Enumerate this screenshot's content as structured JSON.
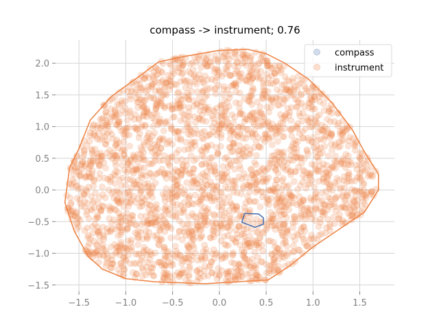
{
  "chart_data": {
    "type": "scatter",
    "title": "compass -> instrument; 0.76",
    "xlabel": "",
    "ylabel": "",
    "xlim": [
      -1.75,
      1.87
    ],
    "ylim": [
      -1.6,
      2.37
    ],
    "x_ticks": [
      -1.5,
      -1.0,
      -0.5,
      0.0,
      0.5,
      1.0,
      1.5
    ],
    "x_tick_labels": [
      "−1.5",
      "−1.0",
      "−0.5",
      "0.0",
      "0.5",
      "1.0",
      "1.5"
    ],
    "y_ticks": [
      -1.5,
      -1.0,
      -0.5,
      0.0,
      0.5,
      1.0,
      1.5,
      2.0
    ],
    "y_tick_labels": [
      "−1.5",
      "−1.0",
      "−0.5",
      "0.0",
      "0.5",
      "1.0",
      "1.5",
      "2.0"
    ],
    "grid": true,
    "legend_position": "top-right",
    "series": [
      {
        "name": "compass",
        "color": "#4c72b0",
        "hull": [
          [
            0.27,
            -0.37
          ],
          [
            0.42,
            -0.38
          ],
          [
            0.47,
            -0.44
          ],
          [
            0.47,
            -0.54
          ],
          [
            0.38,
            -0.59
          ],
          [
            0.24,
            -0.51
          ],
          [
            0.27,
            -0.37
          ]
        ]
      },
      {
        "name": "instrument",
        "color": "#ee8547",
        "hull": [
          [
            -0.01,
            2.2
          ],
          [
            0.3,
            2.22
          ],
          [
            0.5,
            2.15
          ],
          [
            0.7,
            2.0
          ],
          [
            0.95,
            1.75
          ],
          [
            1.2,
            1.38
          ],
          [
            1.42,
            0.95
          ],
          [
            1.55,
            0.6
          ],
          [
            1.7,
            0.25
          ],
          [
            1.7,
            0.0
          ],
          [
            1.55,
            -0.35
          ],
          [
            1.3,
            -0.6
          ],
          [
            1.0,
            -0.9
          ],
          [
            0.75,
            -1.2
          ],
          [
            0.52,
            -1.42
          ],
          [
            0.2,
            -1.45
          ],
          [
            -0.15,
            -1.48
          ],
          [
            -0.7,
            -1.45
          ],
          [
            -1.0,
            -1.4
          ],
          [
            -1.25,
            -1.25
          ],
          [
            -1.4,
            -1.05
          ],
          [
            -1.55,
            -0.65
          ],
          [
            -1.65,
            -0.2
          ],
          [
            -1.6,
            0.35
          ],
          [
            -1.5,
            0.65
          ],
          [
            -1.38,
            1.1
          ],
          [
            -1.15,
            1.48
          ],
          [
            -0.85,
            1.8
          ],
          [
            -0.65,
            2.02
          ],
          [
            -0.4,
            2.1
          ],
          [
            -0.01,
            2.2
          ]
        ]
      }
    ]
  }
}
